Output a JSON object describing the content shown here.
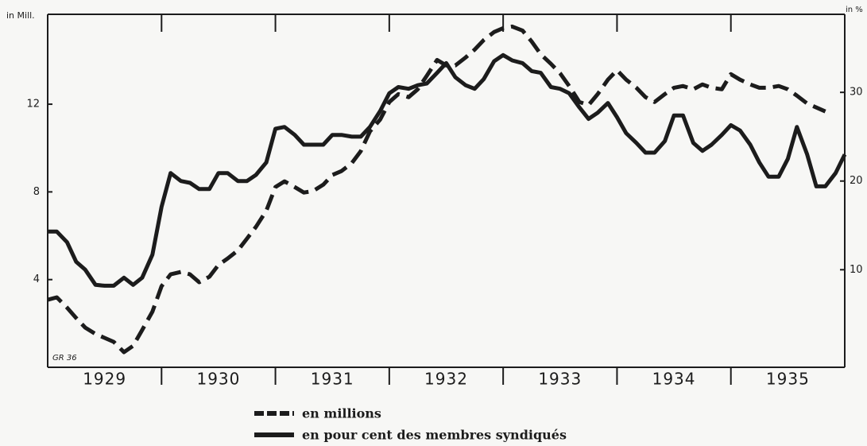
{
  "chart_data": {
    "type": "line",
    "y_label": "in Mill.",
    "y2_label": "in %",
    "annotation": "GR 36",
    "x": [
      1929,
      1929.08,
      1929.17,
      1929.25,
      1929.33,
      1929.42,
      1929.5,
      1929.58,
      1929.67,
      1929.75,
      1929.83,
      1929.92,
      1930,
      1930.08,
      1930.17,
      1930.25,
      1930.33,
      1930.42,
      1930.5,
      1930.58,
      1930.67,
      1930.75,
      1930.83,
      1930.92,
      1931,
      1931.08,
      1931.17,
      1931.25,
      1931.33,
      1931.42,
      1931.5,
      1931.58,
      1931.67,
      1931.75,
      1931.83,
      1931.92,
      1932,
      1932.08,
      1932.17,
      1932.25,
      1932.33,
      1932.42,
      1932.5,
      1932.58,
      1932.67,
      1932.75,
      1932.83,
      1932.92,
      1933,
      1933.08,
      1933.17,
      1933.25,
      1933.33,
      1933.42,
      1933.5,
      1933.58,
      1933.67,
      1933.75,
      1933.83,
      1933.92,
      1934,
      1934.08,
      1934.17,
      1934.25,
      1934.33,
      1934.42,
      1934.5,
      1934.58,
      1934.67,
      1934.75,
      1934.83,
      1934.92,
      1935,
      1935.08,
      1935.17,
      1935.25,
      1935.33,
      1935.42,
      1935.5,
      1935.58,
      1935.67,
      1935.75,
      1935.83,
      1935.92,
      1936
    ],
    "xlim": [
      1929,
      1936
    ],
    "xticks": [
      {
        "value": 1929.5,
        "label": "1929"
      },
      {
        "value": 1930.5,
        "label": "1930"
      },
      {
        "value": 1931.5,
        "label": "1931"
      },
      {
        "value": 1932.5,
        "label": "1932"
      },
      {
        "value": 1933.5,
        "label": "1933"
      },
      {
        "value": 1934.5,
        "label": "1934"
      },
      {
        "value": 1935.5,
        "label": "1935"
      }
    ],
    "ylim": [
      0,
      16.1
    ],
    "yticks": [
      4,
      8,
      12
    ],
    "y2lim": [
      -1,
      38.8
    ],
    "y2ticks": [
      10,
      20,
      30
    ],
    "series": [
      {
        "name": "en millions",
        "color": "#1c1c1c",
        "dashed": true,
        "values": [
          3.08,
          3.19,
          2.72,
          2.25,
          1.81,
          1.52,
          1.34,
          1.16,
          0.69,
          0.98,
          1.7,
          2.54,
          3.7,
          4.24,
          4.35,
          4.24,
          3.88,
          4.13,
          4.67,
          4.96,
          5.33,
          5.87,
          6.41,
          7.14,
          8.22,
          8.48,
          8.22,
          7.97,
          8.04,
          8.33,
          8.77,
          8.95,
          9.31,
          9.86,
          10.76,
          11.3,
          12.1,
          12.46,
          12.32,
          12.68,
          13.3,
          14.02,
          13.77,
          13.77,
          14.13,
          14.49,
          14.93,
          15.29,
          15.47,
          15.54,
          15.36,
          14.86,
          14.28,
          13.84,
          13.41,
          12.83,
          12.1,
          11.96,
          12.46,
          13.12,
          13.55,
          13.12,
          12.75,
          12.32,
          12.1,
          12.46,
          12.75,
          12.83,
          12.68,
          12.9,
          12.75,
          12.68,
          13.37,
          13.12,
          12.9,
          12.75,
          12.75,
          12.83,
          12.68,
          12.39,
          12.03,
          11.85,
          11.67,
          null,
          null
        ]
      },
      {
        "name": "en pour cent des membres syndiqués",
        "color": "#1c1c1c",
        "dashed": false,
        "axis": "y2",
        "values": [
          14.3,
          14.3,
          13.1,
          10.9,
          10.0,
          8.3,
          8.2,
          8.2,
          9.1,
          8.3,
          9.1,
          11.7,
          17.1,
          20.9,
          20.0,
          19.8,
          19.1,
          19.1,
          20.9,
          20.9,
          20.0,
          20.0,
          20.7,
          22.1,
          25.9,
          26.1,
          25.2,
          24.1,
          24.1,
          24.1,
          25.2,
          25.2,
          25.0,
          25.0,
          26.1,
          27.9,
          29.9,
          30.6,
          30.4,
          30.8,
          31.0,
          32.2,
          33.3,
          31.7,
          30.8,
          30.4,
          31.5,
          33.5,
          34.2,
          33.6,
          33.3,
          32.4,
          32.2,
          30.6,
          30.4,
          29.9,
          28.3,
          27.0,
          27.7,
          28.8,
          27.2,
          25.4,
          24.3,
          23.2,
          23.2,
          24.5,
          27.4,
          27.4,
          24.3,
          23.4,
          24.1,
          25.2,
          26.3,
          25.7,
          24.1,
          22.1,
          20.5,
          20.5,
          22.5,
          26.1,
          23.0,
          19.4,
          19.4,
          20.9,
          23.0
        ]
      }
    ]
  }
}
